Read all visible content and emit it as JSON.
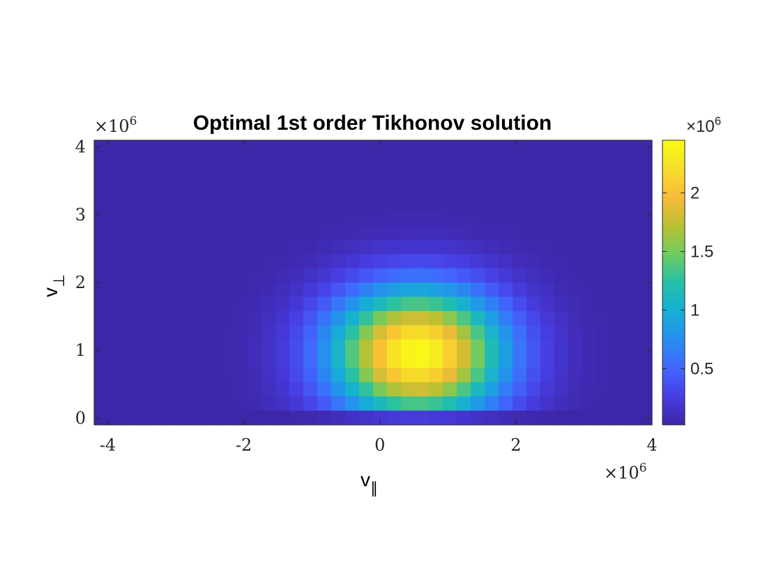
{
  "chart_data": {
    "type": "heatmap",
    "title": "Optimal 1st order Tikhonov solution",
    "xlabel": "v",
    "xlabel_subscript": "∥",
    "ylabel": "v",
    "ylabel_subscript": "⊥",
    "x_multiplier": "×10",
    "x_multiplier_exp": "6",
    "y_multiplier": "×10",
    "y_multiplier_exp": "6",
    "colorbar_multiplier": "×10",
    "colorbar_multiplier_exp": "6",
    "xlim": [
      -4.2,
      4.0
    ],
    "ylim": [
      -0.1,
      4.1
    ],
    "x_ticks": [
      -4,
      -2,
      0,
      2,
      4
    ],
    "x_tick_labels": [
      "-4",
      "-2",
      "0",
      "2",
      "4"
    ],
    "y_ticks": [
      0,
      1,
      2,
      3,
      4
    ],
    "y_tick_labels": [
      "0",
      "1",
      "2",
      "3",
      "4"
    ],
    "colorbar_range": [
      0.02,
      2.45
    ],
    "colorbar_ticks": [
      0.5,
      1,
      1.5,
      2
    ],
    "colorbar_tick_labels": [
      "0.5",
      "1",
      "1.5",
      "2"
    ],
    "colormap": "parula",
    "grid": false,
    "grid_cells": {
      "nx": 40,
      "ny": 20
    },
    "peak": {
      "x": 0.55,
      "y": 0.95,
      "value": 2.45
    }
  }
}
